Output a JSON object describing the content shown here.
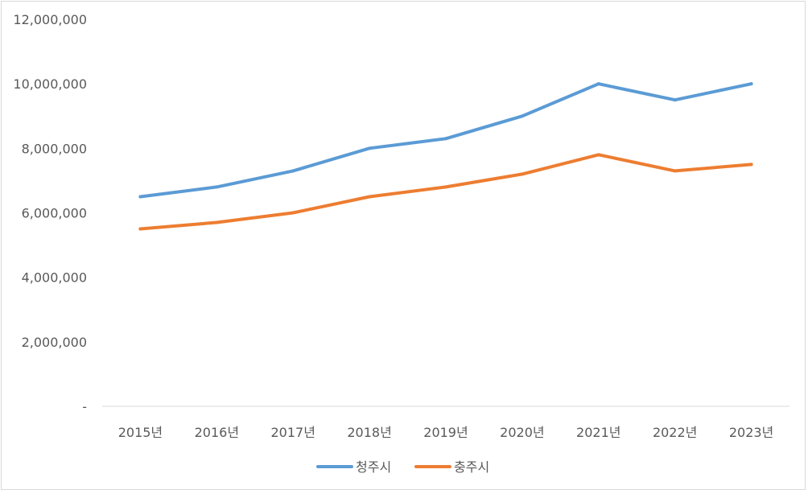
{
  "chart_data": {
    "type": "line",
    "categories": [
      "2015년",
      "2016년",
      "2017년",
      "2018년",
      "2019년",
      "2020년",
      "2021년",
      "2022년",
      "2023년"
    ],
    "series": [
      {
        "name": "청주시",
        "color": "#5b9bd5",
        "values": [
          6500000,
          6800000,
          7300000,
          8000000,
          8300000,
          9000000,
          10000000,
          9500000,
          10000000
        ]
      },
      {
        "name": "충주시",
        "color": "#ed7d31",
        "values": [
          5500000,
          5700000,
          6000000,
          6500000,
          6800000,
          7200000,
          7800000,
          7300000,
          7500000
        ]
      }
    ],
    "ylim": [
      0,
      12000000
    ],
    "yticks": [
      0,
      2000000,
      4000000,
      6000000,
      8000000,
      10000000,
      12000000
    ],
    "ytick_labels": [
      "-",
      "2,000,000",
      "4,000,000",
      "6,000,000",
      "8,000,000",
      "10,000,000",
      "12,000,000"
    ],
    "grid": false,
    "legend": "bottom",
    "title": "",
    "xlabel": "",
    "ylabel": ""
  }
}
